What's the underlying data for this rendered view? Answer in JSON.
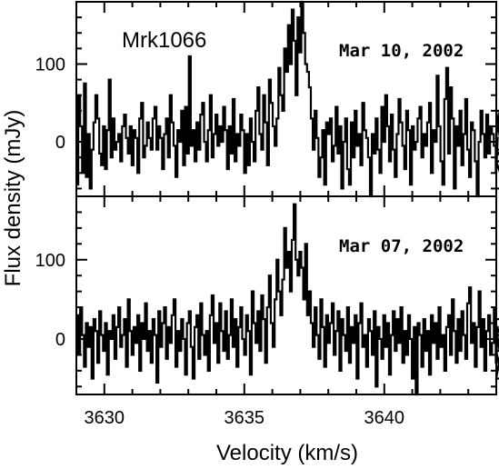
{
  "chart_data": {
    "type": "line",
    "xlabel": "Velocity (km/s)",
    "ylabel": "Flux density (mJy)",
    "source_label": "Mrk1066",
    "xlim": [
      3629,
      3644
    ],
    "x_ticks": [
      3630,
      3635,
      3640
    ],
    "x_tick_labels": [
      "3630",
      "3635",
      "3640"
    ],
    "grid": false,
    "panels": [
      {
        "date_label": "Mar 10, 2002",
        "ylim": [
          -70,
          180
        ],
        "y_ticks": [
          0,
          100
        ],
        "y_tick_labels": [
          "0",
          "100"
        ],
        "series": [
          {
            "x0": 3629.0,
            "dx": 0.0681,
            "values": [
              -55,
              60,
              20,
              -40,
              75,
              -45,
              10,
              -60,
              -10,
              25,
              60,
              30,
              -15,
              -30,
              20,
              -35,
              15,
              80,
              -20,
              30,
              -10,
              0,
              10,
              -25,
              20,
              35,
              5,
              -15,
              20,
              -30,
              15,
              5,
              -40,
              30,
              50,
              -20,
              -5,
              25,
              5,
              -10,
              30,
              45,
              -10,
              20,
              5,
              -35,
              10,
              30,
              -20,
              60,
              25,
              -5,
              -45,
              15,
              0,
              40,
              -30,
              45,
              -15,
              110,
              -5,
              15,
              -25,
              25,
              -10,
              35,
              50,
              0,
              -25,
              15,
              60,
              -20,
              10,
              35,
              -5,
              20,
              0,
              45,
              15,
              -35,
              20,
              -15,
              55,
              -25,
              10,
              -5,
              35,
              15,
              -40,
              10,
              -30,
              30,
              0,
              -25,
              40,
              70,
              10,
              -10,
              60,
              25,
              -30,
              80,
              50,
              20,
              -5,
              30,
              95,
              60,
              40,
              120,
              90,
              150,
              100,
              170,
              130,
              60,
              160,
              115,
              180,
              140,
              100,
              90,
              70,
              30,
              -10,
              40,
              5,
              -45,
              -20,
              15,
              -55,
              25,
              10,
              30,
              -25,
              -5,
              45,
              -15,
              20,
              -60,
              0,
              30,
              -35,
              -55,
              25,
              -20,
              40,
              -5,
              10,
              -30,
              50,
              15,
              5,
              -20,
              -70,
              10,
              -15,
              30,
              -10,
              -40,
              45,
              0,
              60,
              20,
              -25,
              35,
              -10,
              -45,
              10,
              55,
              25,
              -5,
              -35,
              40,
              15,
              -55,
              20,
              -10,
              0,
              30,
              45,
              -20,
              10,
              -5,
              25,
              50,
              -40,
              15,
              0,
              85,
              20,
              -25,
              -55,
              55,
              95,
              -15,
              70,
              30,
              -60,
              20,
              -5,
              40,
              -30,
              10,
              55,
              -10,
              -45,
              25,
              15,
              -25,
              -70,
              0,
              40,
              10,
              -20,
              35,
              -15,
              20,
              10,
              -5,
              -40,
              5,
              40,
              -10,
              -25,
              -60
            ]
          }
        ]
      },
      {
        "date_label": "Mar 07, 2002",
        "ylim": [
          -70,
          180
        ],
        "y_ticks": [
          0,
          100
        ],
        "y_tick_labels": [
          "0",
          "100"
        ],
        "series": [
          {
            "x0": 3629.0,
            "dx": 0.0681,
            "values": [
              30,
              -20,
              40,
              5,
              -35,
              20,
              -10,
              15,
              -50,
              25,
              10,
              -30,
              35,
              5,
              -15,
              20,
              -45,
              10,
              0,
              30,
              -25,
              15,
              40,
              -10,
              5,
              25,
              -35,
              50,
              10,
              -20,
              15,
              -5,
              30,
              -40,
              20,
              0,
              45,
              -15,
              10,
              -30,
              25,
              5,
              -55,
              35,
              -10,
              20,
              40,
              -25,
              15,
              -5,
              30,
              50,
              -35,
              10,
              -15,
              25,
              0,
              -45,
              20,
              35,
              -10,
              -50,
              15,
              30,
              -25,
              45,
              5,
              -20,
              10,
              -40,
              30,
              55,
              -5,
              20,
              -30,
              45,
              10,
              -15,
              35,
              -25,
              5,
              50,
              -10,
              25,
              -35,
              15,
              40,
              0,
              -20,
              30,
              10,
              -45,
              60,
              20,
              -5,
              35,
              -15,
              55,
              25,
              -30,
              40,
              80,
              20,
              -10,
              50,
              100,
              60,
              30,
              75,
              140,
              90,
              110,
              60,
              125,
              170,
              100,
              80,
              110,
              90,
              50,
              120,
              30,
              60,
              20,
              -10,
              40,
              5,
              -25,
              50,
              15,
              -35,
              30,
              -5,
              20,
              45,
              -20,
              10,
              35,
              -40,
              25,
              5,
              -15,
              40,
              -30,
              15,
              -5,
              30,
              -50,
              20,
              45,
              -10,
              5,
              -35,
              25,
              10,
              -20,
              35,
              -60,
              15,
              0,
              -25,
              30,
              -10,
              20,
              -45,
              5,
              35,
              -15,
              25,
              -5,
              40,
              -30,
              10,
              -20,
              30,
              0,
              -50,
              15,
              -70,
              20,
              5,
              -35,
              25,
              -15,
              10,
              -45,
              30,
              -5,
              20,
              -25,
              40,
              -10,
              5,
              -40,
              15,
              30,
              -20,
              50,
              10,
              -30,
              25,
              -15,
              35,
              5,
              -25,
              45,
              65,
              -5,
              20,
              -35,
              15,
              60,
              -10,
              25,
              -40,
              10,
              30,
              -20,
              -5,
              40,
              -30,
              15,
              -15,
              -50,
              5,
              25
            ]
          }
        ]
      }
    ]
  }
}
